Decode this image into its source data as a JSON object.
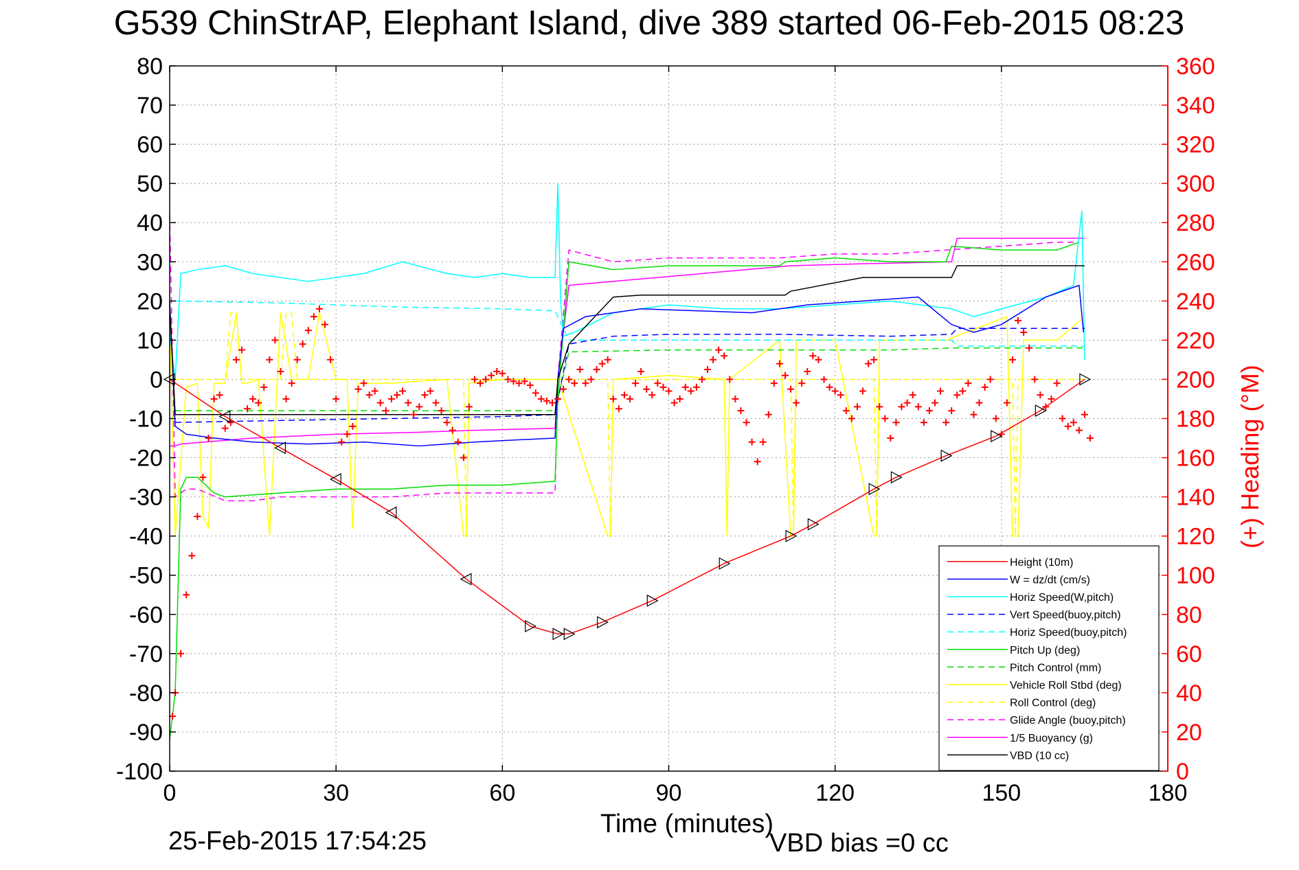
{
  "chart_data": {
    "type": "line",
    "title": "G539 ChinStrAP, Elephant Island, dive 389 started 06-Feb-2015 08:23",
    "xlabel": "Time (minutes)",
    "ylabel_right": "(+) Heading (°M)",
    "footer_date": "25-Feb-2015 17:54:25",
    "footer_note": "VBD bias =0 cc",
    "xlim": [
      0,
      180
    ],
    "ylim": [
      -100,
      80
    ],
    "ylim_right": [
      0,
      360
    ],
    "xticks": [
      0,
      30,
      60,
      90,
      120,
      150,
      180
    ],
    "yticks": [
      80,
      70,
      60,
      50,
      40,
      30,
      20,
      10,
      0,
      -10,
      -20,
      -30,
      -40,
      -50,
      -60,
      -70,
      -80,
      -90,
      -100
    ],
    "yticks_right": [
      360,
      340,
      320,
      300,
      280,
      260,
      240,
      220,
      200,
      180,
      160,
      140,
      120,
      100,
      80,
      60,
      40,
      20,
      0
    ],
    "grid": true,
    "legend_position": "bottom-right",
    "colors": {
      "axis": "#000000",
      "right_axis": "#ff0000",
      "grid": "#9a9a9a"
    },
    "legend": [
      {
        "label": "Height (10m)",
        "color": "#ff0000",
        "dash": "solid"
      },
      {
        "label": "W = dz/dt (cm/s)",
        "color": "#0000ff",
        "dash": "solid"
      },
      {
        "label": "Horiz Speed(W,pitch)",
        "color": "#00ffff",
        "dash": "solid"
      },
      {
        "label": "Vert Speed(buoy,pitch)",
        "color": "#0000ff",
        "dash": "dashed"
      },
      {
        "label": "Horiz Speed(buoy,pitch)",
        "color": "#00ffff",
        "dash": "dashed"
      },
      {
        "label": "Pitch Up (deg)",
        "color": "#00dd00",
        "dash": "solid"
      },
      {
        "label": "Pitch Control (mm)",
        "color": "#00dd00",
        "dash": "dashed"
      },
      {
        "label": "Vehicle Roll Stbd (deg)",
        "color": "#ffff00",
        "dash": "solid"
      },
      {
        "label": "Roll Control (deg)",
        "color": "#ffff00",
        "dash": "dashed"
      },
      {
        "label": "Glide Angle (buoy,pitch)",
        "color": "#ff00ff",
        "dash": "dashed"
      },
      {
        "label": "1/5 Buoyancy (g)",
        "color": "#ff00ff",
        "dash": "solid"
      },
      {
        "label": "VBD (10 cc)",
        "color": "#000000",
        "dash": "solid"
      }
    ],
    "series": [
      {
        "name": "Height (10m)",
        "color": "#ff0000",
        "dash": "solid",
        "x": [
          0,
          10,
          20,
          30,
          40,
          53.5,
          65,
          70,
          72,
          78,
          87,
          100,
          112,
          116,
          127,
          131,
          140,
          149,
          157,
          165
        ],
        "y": [
          0,
          -9.5,
          -17.5,
          -25.5,
          -34,
          -51,
          -63,
          -65,
          -65,
          -62,
          -56.5,
          -47,
          -40,
          -37,
          -28,
          -25,
          -19.5,
          -14.5,
          -8,
          0
        ]
      },
      {
        "name": "W = dz/dt (cm/s)",
        "color": "#0000ff",
        "dash": "solid",
        "x": [
          0,
          1,
          3,
          8,
          15,
          25,
          35,
          45,
          55,
          62,
          69.5,
          70,
          71,
          75,
          85,
          95,
          105,
          115,
          125,
          135,
          141,
          145,
          150,
          158,
          164,
          164.8
        ],
        "y": [
          20,
          -12,
          -14,
          -15,
          -16,
          -16.5,
          -16,
          -17,
          -16,
          -15.5,
          -15,
          0,
          13,
          16,
          18,
          17.5,
          17,
          19,
          20,
          21,
          14,
          12,
          14,
          21,
          24,
          12
        ]
      },
      {
        "name": "Horiz Speed(W,pitch)",
        "color": "#00ffff",
        "dash": "solid",
        "x": [
          0,
          1,
          2,
          5,
          10,
          15,
          20,
          25,
          30,
          35,
          42,
          50,
          55,
          60,
          65,
          69.5,
          70,
          70.5,
          71,
          73,
          80,
          90,
          100,
          110,
          120,
          130,
          141,
          145,
          150,
          158,
          163,
          164.5,
          165
        ],
        "y": [
          12,
          0,
          27,
          28,
          29,
          27,
          26,
          25,
          26,
          27,
          30,
          27,
          26,
          27,
          26,
          26,
          50,
          20,
          11,
          12,
          17,
          19,
          18,
          18,
          19,
          20,
          18,
          16,
          18,
          21,
          24,
          43,
          5
        ]
      },
      {
        "name": "Vert Speed(buoy,pitch)",
        "color": "#0000ff",
        "dash": "dashed",
        "x": [
          1,
          20,
          40,
          60,
          69.5,
          72,
          80,
          90,
          110,
          130,
          141,
          142,
          165
        ],
        "y": [
          -11,
          -10.5,
          -10,
          -9.5,
          -9,
          9,
          11,
          11.5,
          11.5,
          11,
          11.5,
          13,
          13
        ]
      },
      {
        "name": "Horiz Speed(buoy,pitch)",
        "color": "#00ffff",
        "dash": "dashed",
        "x": [
          1,
          20,
          40,
          60,
          69.5,
          72,
          90,
          110,
          130,
          141,
          142,
          165
        ],
        "y": [
          20,
          19.5,
          18.5,
          18,
          17.5,
          10,
          10,
          10,
          10,
          10,
          8.5,
          8.5
        ]
      },
      {
        "name": "Pitch Up (deg)",
        "color": "#00dd00",
        "dash": "solid",
        "x": [
          0,
          1,
          2,
          3,
          5,
          8,
          10,
          20,
          30,
          40,
          50,
          60,
          69.5,
          70,
          72,
          80,
          90,
          100,
          110,
          111,
          120,
          130,
          140,
          141,
          150,
          160,
          164
        ],
        "y": [
          -92,
          -80,
          -28,
          -25,
          -25,
          -29,
          -30,
          -29,
          -28,
          -28,
          -27,
          -27,
          -26,
          -5,
          30,
          28,
          29,
          29,
          29,
          30,
          31,
          30,
          30,
          34,
          33,
          33,
          35
        ]
      },
      {
        "name": "Pitch Control (mm)",
        "color": "#00dd00",
        "dash": "dashed",
        "x": [
          1,
          20,
          40,
          60,
          69.5,
          72,
          90,
          110,
          130,
          141,
          150,
          165
        ],
        "y": [
          -8,
          -8,
          -8,
          -8,
          -8,
          7,
          7.5,
          7.5,
          7.5,
          8,
          8,
          8
        ]
      },
      {
        "name": "Vehicle Roll Stbd (deg)",
        "color": "#ffff00",
        "dash": "solid",
        "x": [
          0,
          1,
          3,
          5,
          6,
          7,
          8,
          10,
          12,
          13,
          14,
          16,
          18,
          20,
          22,
          25,
          27,
          30,
          32,
          33,
          34,
          40,
          50,
          53,
          53.5,
          54,
          60,
          70,
          79,
          79.5,
          80,
          90,
          100,
          100.5,
          101,
          110,
          112,
          112.5,
          113,
          120,
          127,
          127.5,
          128,
          140,
          151,
          152,
          153,
          154,
          160,
          165
        ],
        "y": [
          15,
          -40,
          -2,
          -1,
          -35,
          -38,
          -1,
          -1,
          17,
          -1,
          -1,
          0,
          -40,
          17,
          0,
          0,
          17,
          0,
          0,
          -38,
          -1,
          -1,
          0,
          -40,
          -40,
          -1,
          0,
          0,
          -40,
          -40,
          0,
          1,
          0,
          -40,
          0,
          10,
          -40,
          -40,
          10,
          10,
          -40,
          -40,
          10,
          10,
          16,
          -40,
          -40,
          10,
          10,
          16
        ]
      },
      {
        "name": "Roll Control (deg)",
        "color": "#ffff00",
        "dash": "dashed",
        "x": [
          1,
          10,
          11,
          12,
          13,
          20,
          21,
          22,
          23,
          30,
          40,
          53,
          53.5,
          54,
          69.5,
          72,
          79,
          79.5,
          80,
          100,
          112,
          112.5,
          113,
          127,
          127.5,
          128,
          150,
          152,
          152.5,
          153,
          165
        ],
        "y": [
          0,
          0,
          17,
          17,
          0,
          0,
          17,
          17,
          0,
          0,
          0,
          0,
          -40,
          0,
          0,
          0,
          0,
          -40,
          0,
          0,
          0,
          -40,
          0,
          0,
          -40,
          0,
          0,
          0,
          -40,
          0,
          0
        ]
      },
      {
        "name": "Glide Angle (buoy,pitch)",
        "color": "#ff00ff",
        "dash": "dashed",
        "x": [
          0,
          1,
          3,
          5,
          10,
          15,
          20,
          30,
          40,
          50,
          60,
          69.5,
          70,
          72,
          80,
          90,
          100,
          110,
          120,
          130,
          140,
          150,
          160,
          164
        ],
        "y": [
          42,
          -30,
          -28,
          -28,
          -31,
          -31,
          -30,
          -30,
          -30,
          -29,
          -29,
          -29,
          0,
          33,
          30,
          31,
          31,
          31,
          32,
          32,
          33,
          34,
          35,
          35
        ]
      },
      {
        "name": "1/5 Buoyancy (g)",
        "color": "#ff00ff",
        "dash": "solid",
        "x": [
          0,
          1,
          2,
          15,
          30,
          45,
          55,
          69.5,
          70,
          72,
          80,
          100,
          112,
          125,
          141,
          142,
          165
        ],
        "y": [
          -17,
          -17,
          -16.5,
          -15,
          -14,
          -13.5,
          -13,
          -12.5,
          0,
          24,
          25,
          27.5,
          29,
          29.5,
          30,
          36,
          36
        ]
      },
      {
        "name": "VBD (10 cc)",
        "color": "#000000",
        "dash": "solid",
        "x": [
          0,
          1,
          2,
          30,
          69.5,
          70,
          72,
          80,
          85,
          111,
          112,
          125,
          141,
          142,
          150,
          165
        ],
        "y": [
          19,
          -9,
          -9,
          -9,
          -9,
          0,
          9,
          21,
          21.5,
          21.5,
          22.5,
          26,
          26,
          29,
          29,
          29
        ]
      },
      {
        "name": "(+) Heading (°M)",
        "color": "#ff0000",
        "dash": "none",
        "marker": "+",
        "axis": "right",
        "x": [
          0.5,
          1,
          2,
          3,
          4,
          5,
          6,
          7,
          8,
          9,
          10,
          11,
          12,
          13,
          14,
          15,
          16,
          17,
          18,
          19,
          20,
          21,
          22,
          23,
          24,
          25,
          26,
          27,
          28,
          29,
          30,
          31,
          32,
          33,
          34,
          35,
          36,
          37,
          38,
          39,
          40,
          41,
          42,
          43,
          44,
          45,
          46,
          47,
          48,
          49,
          50,
          51,
          52,
          53,
          54,
          55,
          56,
          57,
          58,
          59,
          60,
          61,
          62,
          63,
          64,
          65,
          66,
          67,
          68,
          69,
          70,
          71,
          72,
          73,
          74,
          75,
          76,
          77,
          78,
          79,
          80,
          81,
          82,
          83,
          84,
          85,
          86,
          87,
          88,
          89,
          90,
          91,
          92,
          93,
          94,
          95,
          96,
          97,
          98,
          99,
          100,
          101,
          102,
          103,
          104,
          105,
          106,
          107,
          108,
          109,
          110,
          111,
          112,
          113,
          114,
          115,
          116,
          117,
          118,
          119,
          120,
          121,
          122,
          123,
          124,
          125,
          126,
          127,
          128,
          129,
          130,
          131,
          132,
          133,
          134,
          135,
          136,
          137,
          138,
          139,
          140,
          141,
          142,
          143,
          144,
          145,
          146,
          147,
          148,
          149,
          150,
          151,
          152,
          153,
          154,
          155,
          156,
          157,
          158,
          159,
          160,
          161,
          162,
          163,
          164,
          165,
          166
        ],
        "y": [
          28,
          40,
          60,
          90,
          110,
          130,
          150,
          170,
          190,
          192,
          175,
          178,
          210,
          215,
          185,
          190,
          188,
          196,
          210,
          220,
          204,
          190,
          198,
          210,
          218,
          225,
          232,
          236,
          228,
          210,
          190,
          168,
          172,
          176,
          195,
          198,
          192,
          194,
          188,
          184,
          190,
          192,
          194,
          188,
          182,
          186,
          192,
          194,
          188,
          184,
          178,
          174,
          168,
          160,
          186,
          200,
          198,
          200,
          202,
          204,
          203,
          200,
          199,
          198,
          199,
          197,
          193,
          190,
          189,
          188,
          190,
          195,
          200,
          198,
          205,
          198,
          200,
          205,
          208,
          210,
          190,
          185,
          192,
          190,
          198,
          204,
          195,
          192,
          198,
          196,
          194,
          188,
          190,
          196,
          194,
          196,
          200,
          205,
          210,
          215,
          212,
          200,
          190,
          184,
          178,
          168,
          158,
          168,
          182,
          198,
          208,
          202,
          195,
          188,
          198,
          204,
          212,
          210,
          200,
          196,
          194,
          192,
          184,
          180,
          186,
          194,
          208,
          210,
          186,
          180,
          170,
          178,
          186,
          188,
          192,
          186,
          178,
          184,
          188,
          194,
          178,
          184,
          192,
          194,
          198,
          182,
          188,
          196,
          200,
          180,
          172,
          188,
          210,
          230,
          224,
          216,
          200,
          192,
          186,
          190,
          198,
          180,
          176,
          178,
          174,
          182,
          170
        ]
      }
    ]
  }
}
